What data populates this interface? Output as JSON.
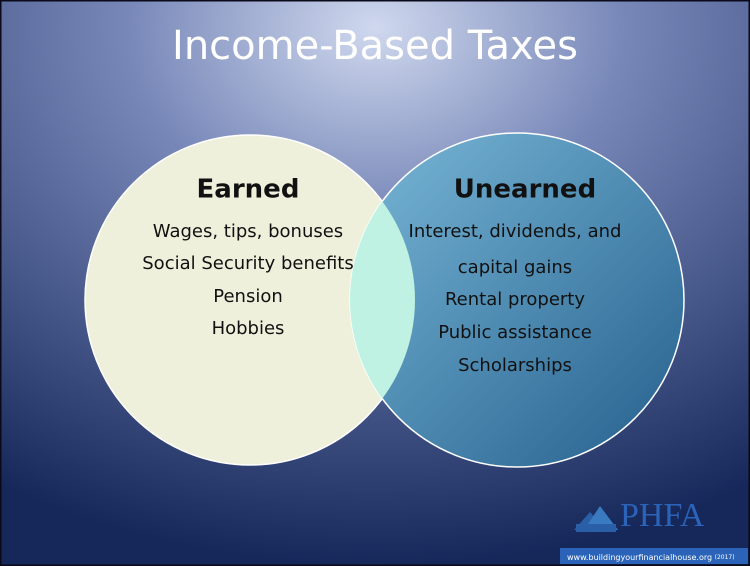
{
  "title": "Income-Based Taxes",
  "circles": [
    {
      "heading": "Earned",
      "items": [
        "Wages, tips, bonuses",
        "Social Security benefits",
        "Pension",
        "Hobbies"
      ]
    },
    {
      "heading": "Unearned",
      "items": [
        "Interest, dividends, and",
        "capital gains",
        "Rental property",
        "Public assistance",
        "Scholarships"
      ]
    }
  ],
  "footer": {
    "logo": "PHFA",
    "url": "www.buildingyourfinancialhouse.org",
    "year": "(2017)"
  }
}
